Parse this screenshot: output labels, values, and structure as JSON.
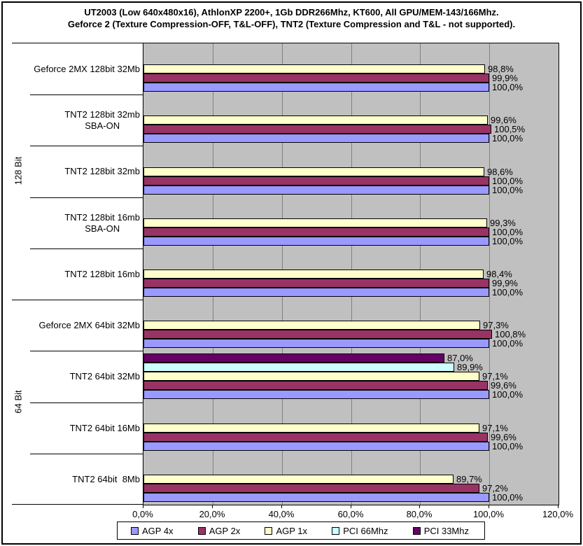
{
  "title": {
    "line1": "UT2003 (Low 640x480x16), AthlonXP 2200+, 1Gb DDR266Mhz, KT600, All GPU/MEM-143/166Mhz.",
    "line2": "Geforce 2 (Texture Compression-OFF, T&L-OFF), TNT2 (Texture Compression and T&L - not supported)."
  },
  "colors": {
    "plot_background": "#c0c0c0",
    "gridline": "#808080",
    "bar_border": "#000000",
    "text": "#000000"
  },
  "chart_data": {
    "type": "bar",
    "orientation": "horizontal",
    "title": "UT2003 (Low 640x480x16), AthlonXP 2200+, 1Gb DDR266Mhz, KT600, All GPU/MEM-143/166Mhz. Geforce 2 (Texture Compression-OFF, T&L-OFF), TNT2 (Texture Compression and T&L - not supported).",
    "xlim": [
      0,
      120
    ],
    "x_tick_values": [
      0,
      20,
      40,
      60,
      80,
      100,
      120
    ],
    "x_tick_labels": [
      "0,0%",
      "20,0%",
      "40,0%",
      "60,0%",
      "80,0%",
      "100,0%",
      "120,0%"
    ],
    "grid": "vertical",
    "legend_position": "bottom",
    "decimal_separator": ",",
    "value_suffix": "%",
    "group_labels": [
      {
        "label": "128 Bit",
        "first_row": 0,
        "row_count": 5
      },
      {
        "label": "64 Bit",
        "first_row": 5,
        "row_count": 4
      }
    ],
    "categories": [
      "Geforce 2MX 128bit 32Mb",
      "TNT2 128bit 32mb\nSBA-ON",
      "TNT2 128bit 32mb",
      "TNT2 128bit 16mb\nSBA-ON",
      "TNT2 128bit 16mb",
      "Geforce 2MX 64bit 32Mb",
      "TNT2 64bit 32Mb",
      "TNT2 64bit 16Mb",
      "TNT2 64bit  8Mb"
    ],
    "series": [
      {
        "name": "AGP 4x",
        "color": "#9999ff",
        "values": [
          100.0,
          100.0,
          100.0,
          100.0,
          100.0,
          100.0,
          100.0,
          100.0,
          100.0
        ]
      },
      {
        "name": "AGP 2x",
        "color": "#993366",
        "values": [
          99.9,
          100.5,
          100.0,
          100.0,
          99.9,
          100.8,
          99.6,
          99.6,
          97.2
        ]
      },
      {
        "name": "AGP 1x",
        "color": "#ffffcc",
        "values": [
          98.8,
          99.6,
          98.6,
          99.3,
          98.4,
          97.3,
          97.1,
          97.1,
          89.7
        ]
      },
      {
        "name": "PCI 66Mhz",
        "color": "#ccffff",
        "values": [
          null,
          null,
          null,
          null,
          null,
          null,
          89.9,
          null,
          null
        ]
      },
      {
        "name": "PCI 33Mhz",
        "color": "#660066",
        "values": [
          null,
          null,
          null,
          null,
          null,
          null,
          87.0,
          null,
          null
        ]
      }
    ]
  },
  "legend": {
    "items": [
      {
        "label": "AGP 4x",
        "color": "#9999ff"
      },
      {
        "label": "AGP 2x",
        "color": "#993366"
      },
      {
        "label": "AGP 1x",
        "color": "#ffffcc"
      },
      {
        "label": "PCI 66Mhz",
        "color": "#ccffff"
      },
      {
        "label": "PCI 33Mhz",
        "color": "#660066"
      }
    ]
  }
}
